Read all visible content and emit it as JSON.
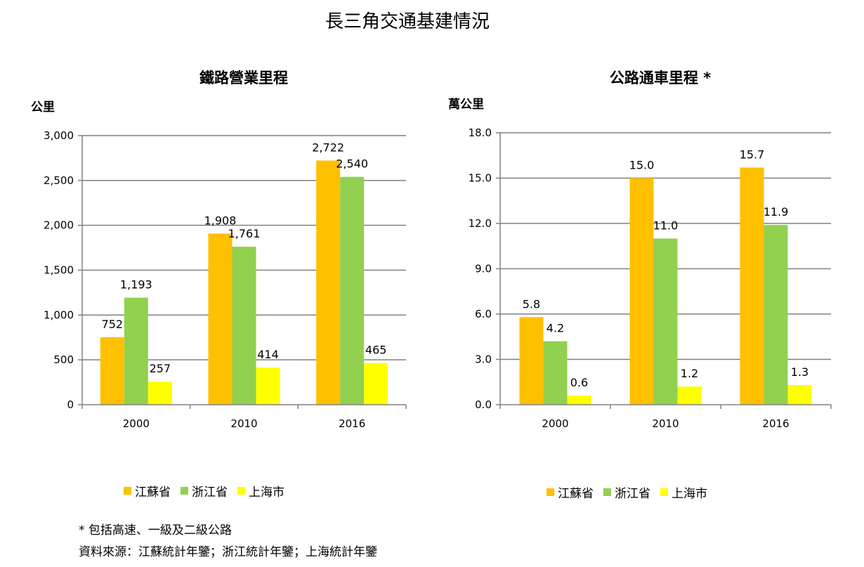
{
  "title": "長三角交通基建情況",
  "colors": {
    "jiangsu": "#FFC000",
    "zhejiang": "#92D050",
    "shanghai": "#FFFF00",
    "grid": "#808080"
  },
  "chart_data": [
    {
      "type": "bar",
      "title": "鐵路營業里程",
      "unit": "公里",
      "categories": [
        "2000",
        "2010",
        "2016"
      ],
      "ylim": [
        0,
        3000
      ],
      "yticks": [
        "0",
        "500",
        "1,000",
        "1,500",
        "2,000",
        "2,500",
        "3,000"
      ],
      "series": [
        {
          "name": "江蘇省",
          "values": [
            752,
            1908,
            2722
          ],
          "labels": [
            "752",
            "1,908",
            "2,722"
          ]
        },
        {
          "name": "浙江省",
          "values": [
            1193,
            1761,
            2540
          ],
          "labels": [
            "1,193",
            "1,761",
            "2,540"
          ]
        },
        {
          "name": "上海市",
          "values": [
            257,
            414,
            465
          ],
          "labels": [
            "257",
            "414",
            "465"
          ]
        }
      ],
      "grid": true,
      "legend": "bottom"
    },
    {
      "type": "bar",
      "title": "公路通車里程 *",
      "unit": "萬公里",
      "categories": [
        "2000",
        "2010",
        "2016"
      ],
      "ylim": [
        0,
        18
      ],
      "yticks": [
        "0.0",
        "3.0",
        "6.0",
        "9.0",
        "12.0",
        "15.0",
        "18.0"
      ],
      "series": [
        {
          "name": "江蘇省",
          "values": [
            5.8,
            15.0,
            15.7
          ],
          "labels": [
            "5.8",
            "15.0",
            "15.7"
          ]
        },
        {
          "name": "浙江省",
          "values": [
            4.2,
            11.0,
            11.9
          ],
          "labels": [
            "4.2",
            "11.0",
            "11.9"
          ]
        },
        {
          "name": "上海市",
          "values": [
            0.6,
            1.2,
            1.3
          ],
          "labels": [
            "0.6",
            "1.2",
            "1.3"
          ]
        }
      ],
      "grid": true,
      "legend": "bottom"
    }
  ],
  "footnotes": {
    "note": "* 包括高速、一級及二級公路",
    "source": "資料來源：江蘇統計年鑒；浙江統計年鑒；上海統計年鑒"
  }
}
